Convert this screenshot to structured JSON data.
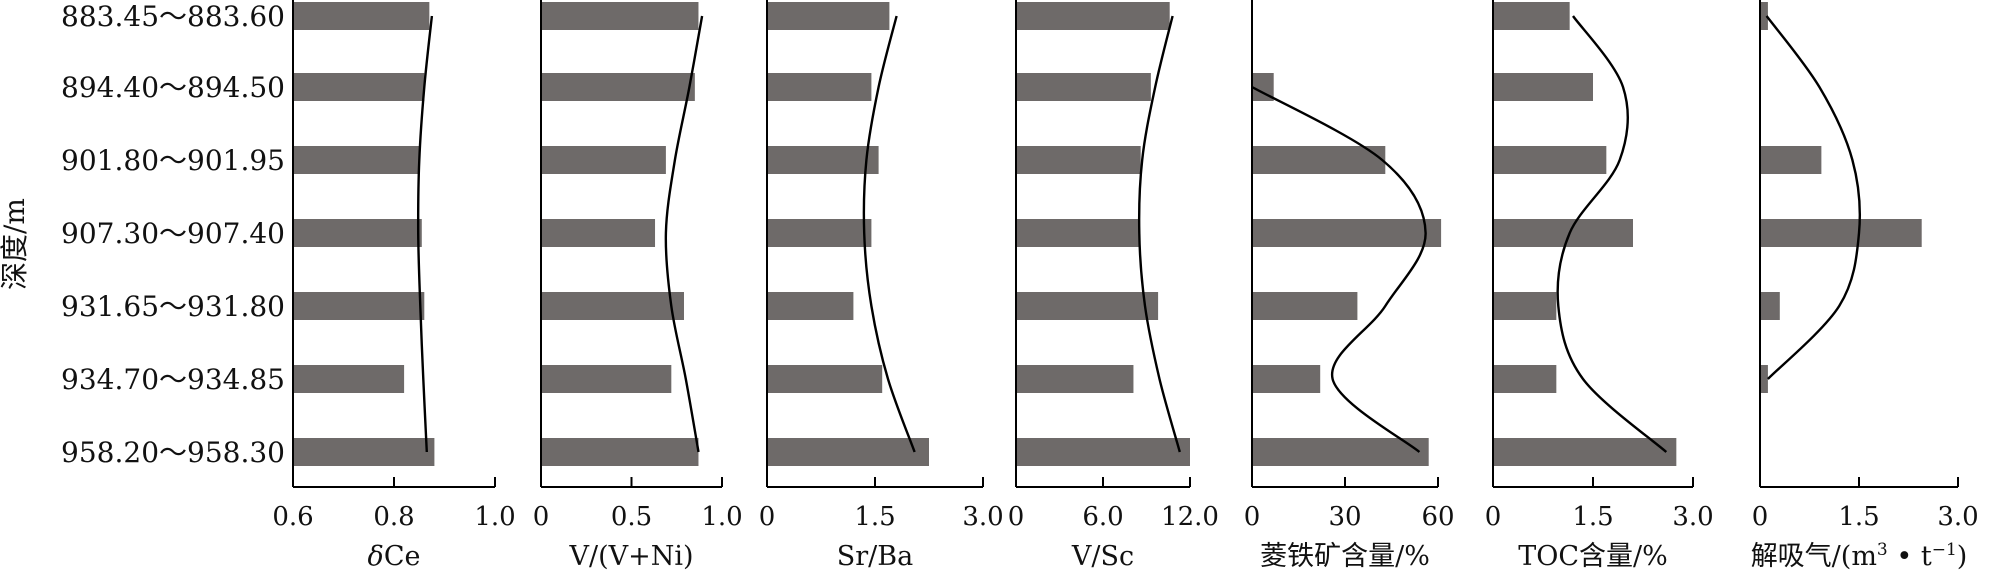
{
  "chart_data": {
    "type": "bar",
    "ylabel": "深度/m",
    "categories": [
      "883.45～883.60",
      "894.40～894.50",
      "901.80～901.95",
      "907.30～907.40",
      "931.65～931.80",
      "934.70～934.85",
      "958.20～958.30"
    ],
    "bar_color": "#6e6a69",
    "curve_color": "#000000",
    "panels": [
      {
        "id": "dce",
        "title": "δCe",
        "title_prefix": "δ",
        "title_main": "Ce",
        "xlim": [
          0.6,
          1.0
        ],
        "ticks": [
          "0.6",
          "0.8",
          "1.0"
        ],
        "tick_values": [
          0.6,
          0.8,
          1.0
        ],
        "values": [
          0.87,
          0.86,
          0.85,
          0.855,
          0.86,
          0.82,
          0.88
        ],
        "curve": [
          0.875,
          0.86,
          0.85,
          0.848,
          0.852,
          0.858,
          0.865
        ]
      },
      {
        "id": "v-vni",
        "title": "V/(V+Ni)",
        "xlim": [
          0,
          1.0
        ],
        "ticks": [
          "0",
          "0.5",
          "1.0"
        ],
        "tick_values": [
          0,
          0.5,
          1.0
        ],
        "values": [
          0.87,
          0.85,
          0.69,
          0.63,
          0.79,
          0.72,
          0.87
        ],
        "curve": [
          0.89,
          0.82,
          0.74,
          0.69,
          0.72,
          0.8,
          0.87
        ]
      },
      {
        "id": "sr-ba",
        "title": "Sr/Ba",
        "xlim": [
          0,
          3.0
        ],
        "ticks": [
          "0",
          "1.5",
          "3.0"
        ],
        "tick_values": [
          0,
          1.5,
          3.0
        ],
        "values": [
          1.7,
          1.45,
          1.55,
          1.45,
          1.2,
          1.6,
          2.25
        ],
        "curve": [
          1.8,
          1.55,
          1.38,
          1.35,
          1.45,
          1.68,
          2.05
        ]
      },
      {
        "id": "v-sc",
        "title": "V/Sc",
        "xlim": [
          0,
          12.0
        ],
        "ticks": [
          "0",
          "6.0",
          "12.0"
        ],
        "tick_values": [
          0,
          6.0,
          12.0
        ],
        "values": [
          10.6,
          9.3,
          8.6,
          8.5,
          9.8,
          8.1,
          12.0
        ],
        "curve": [
          10.8,
          9.6,
          8.7,
          8.5,
          8.9,
          9.9,
          11.3
        ]
      },
      {
        "id": "siderite",
        "title": "菱铁矿含量/%",
        "xlim": [
          0,
          60
        ],
        "ticks": [
          "0",
          "30",
          "60"
        ],
        "tick_values": [
          0,
          30,
          60
        ],
        "values": [
          0,
          7,
          43,
          61,
          34,
          22,
          57
        ],
        "curve": [
          null,
          0,
          42,
          56,
          43,
          26,
          54
        ]
      },
      {
        "id": "toc",
        "title": "TOC含量/%",
        "xlim": [
          0,
          3.0
        ],
        "ticks": [
          "0",
          "1.5",
          "3.0"
        ],
        "tick_values": [
          0,
          1.5,
          3.0
        ],
        "values": [
          1.15,
          1.5,
          1.7,
          2.1,
          0.95,
          0.95,
          2.75
        ],
        "curve": [
          1.2,
          1.95,
          1.9,
          1.15,
          0.98,
          1.35,
          2.6
        ]
      },
      {
        "id": "desorbed-gas",
        "title": "解吸气/(m³·t⁻¹)",
        "title_main": "解吸气/(m",
        "title_sup1": "3",
        "title_mid": " • t",
        "title_sup2": "−1",
        "title_end": ")",
        "xlim": [
          0,
          3.0
        ],
        "ticks": [
          "0",
          "1.5",
          "3.0"
        ],
        "tick_values": [
          0,
          1.5,
          3.0
        ],
        "values": [
          0.12,
          0,
          0.93,
          2.45,
          0.3,
          0.12,
          0
        ],
        "curve": [
          0.1,
          0.9,
          1.4,
          1.5,
          1.2,
          0.12,
          null
        ]
      }
    ]
  }
}
